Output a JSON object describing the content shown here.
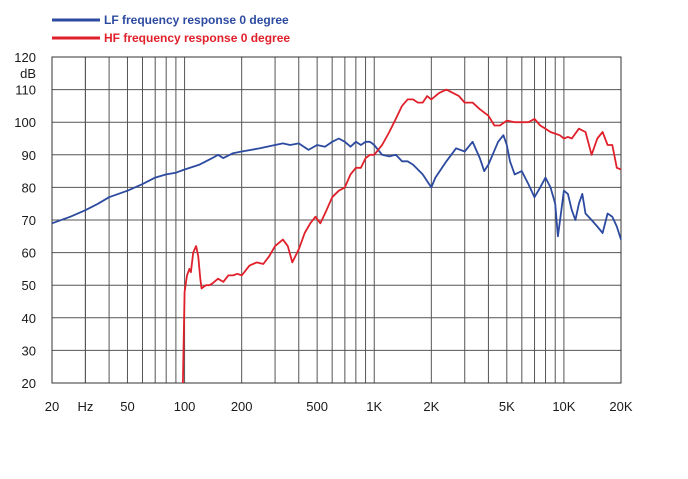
{
  "chart_data": {
    "type": "line",
    "title": "",
    "xlabel": "",
    "ylabel": "",
    "x_scale": "log",
    "xlim": [
      20,
      20000
    ],
    "ylim": [
      20,
      120
    ],
    "grid": true,
    "legend_placement": "top-left",
    "y_unit_label": "dB",
    "x_unit_label": "Hz",
    "y_ticks": [
      {
        "value": 120,
        "label": "120"
      },
      {
        "value": 110,
        "label": "110"
      },
      {
        "value": 100,
        "label": "100"
      },
      {
        "value": 90,
        "label": "90"
      },
      {
        "value": 80,
        "label": "80"
      },
      {
        "value": 70,
        "label": "70"
      },
      {
        "value": 60,
        "label": "60"
      },
      {
        "value": 50,
        "label": "50"
      },
      {
        "value": 40,
        "label": "40"
      },
      {
        "value": 30,
        "label": "30"
      },
      {
        "value": 20,
        "label": "20"
      }
    ],
    "x_ticks": [
      {
        "value": 20,
        "label": "20"
      },
      {
        "value": 50,
        "label": "50"
      },
      {
        "value": 100,
        "label": "100"
      },
      {
        "value": 200,
        "label": "200"
      },
      {
        "value": 500,
        "label": "500"
      },
      {
        "value": 1000,
        "label": "1K"
      },
      {
        "value": 2000,
        "label": "2K"
      },
      {
        "value": 5000,
        "label": "5K"
      },
      {
        "value": 10000,
        "label": "10K"
      },
      {
        "value": 20000,
        "label": "20K"
      }
    ],
    "series": [
      {
        "name": "LF frequency response 0 degree",
        "color": "#2c4aa0",
        "points": [
          [
            20,
            69
          ],
          [
            25,
            71
          ],
          [
            30,
            73
          ],
          [
            35,
            75
          ],
          [
            40,
            77
          ],
          [
            50,
            79
          ],
          [
            60,
            81
          ],
          [
            70,
            83
          ],
          [
            80,
            84
          ],
          [
            90,
            84.5
          ],
          [
            100,
            85.5
          ],
          [
            120,
            87
          ],
          [
            140,
            89
          ],
          [
            150,
            90
          ],
          [
            160,
            89
          ],
          [
            180,
            90.5
          ],
          [
            200,
            91
          ],
          [
            250,
            92
          ],
          [
            300,
            93
          ],
          [
            330,
            93.5
          ],
          [
            360,
            93
          ],
          [
            400,
            93.5
          ],
          [
            450,
            91.5
          ],
          [
            500,
            93
          ],
          [
            550,
            92.5
          ],
          [
            600,
            94
          ],
          [
            650,
            95
          ],
          [
            700,
            94
          ],
          [
            750,
            92.5
          ],
          [
            800,
            94
          ],
          [
            850,
            93
          ],
          [
            900,
            94
          ],
          [
            950,
            94
          ],
          [
            1000,
            93
          ],
          [
            1100,
            90
          ],
          [
            1200,
            89.5
          ],
          [
            1300,
            90
          ],
          [
            1400,
            88
          ],
          [
            1500,
            88
          ],
          [
            1600,
            87
          ],
          [
            1800,
            84
          ],
          [
            2000,
            80
          ],
          [
            2100,
            83
          ],
          [
            2400,
            88
          ],
          [
            2700,
            92
          ],
          [
            3000,
            91
          ],
          [
            3300,
            94
          ],
          [
            3600,
            89
          ],
          [
            3800,
            85
          ],
          [
            4000,
            87
          ],
          [
            4500,
            94
          ],
          [
            4800,
            96
          ],
          [
            5000,
            93
          ],
          [
            5200,
            88
          ],
          [
            5500,
            84
          ],
          [
            6000,
            85
          ],
          [
            6500,
            81
          ],
          [
            7000,
            77
          ],
          [
            7500,
            80
          ],
          [
            8000,
            83
          ],
          [
            8500,
            80
          ],
          [
            9000,
            75
          ],
          [
            9300,
            65
          ],
          [
            9600,
            71
          ],
          [
            10000,
            79
          ],
          [
            10500,
            78
          ],
          [
            11000,
            73
          ],
          [
            11500,
            70
          ],
          [
            12000,
            75
          ],
          [
            12500,
            78
          ],
          [
            13000,
            72
          ],
          [
            14000,
            70
          ],
          [
            15000,
            68
          ],
          [
            16000,
            66
          ],
          [
            17000,
            72
          ],
          [
            18000,
            71
          ],
          [
            19000,
            68
          ],
          [
            20000,
            64
          ]
        ]
      },
      {
        "name": "HF frequency response 0 degree",
        "color": "#e0202a",
        "points": [
          [
            98,
            20
          ],
          [
            100,
            48
          ],
          [
            103,
            53
          ],
          [
            106,
            55
          ],
          [
            108,
            54
          ],
          [
            111,
            60
          ],
          [
            115,
            62
          ],
          [
            118,
            59
          ],
          [
            121,
            52
          ],
          [
            123,
            49
          ],
          [
            126,
            49.5
          ],
          [
            130,
            50
          ],
          [
            135,
            50
          ],
          [
            140,
            50.5
          ],
          [
            150,
            52
          ],
          [
            160,
            51
          ],
          [
            170,
            53
          ],
          [
            180,
            53
          ],
          [
            190,
            53.5
          ],
          [
            200,
            53
          ],
          [
            220,
            56
          ],
          [
            240,
            57
          ],
          [
            260,
            56.5
          ],
          [
            280,
            59
          ],
          [
            300,
            62
          ],
          [
            330,
            64
          ],
          [
            350,
            62
          ],
          [
            370,
            57
          ],
          [
            400,
            61
          ],
          [
            430,
            66
          ],
          [
            460,
            69
          ],
          [
            490,
            71
          ],
          [
            520,
            69
          ],
          [
            560,
            73
          ],
          [
            600,
            77
          ],
          [
            650,
            79
          ],
          [
            700,
            80
          ],
          [
            750,
            84
          ],
          [
            800,
            86
          ],
          [
            850,
            86
          ],
          [
            900,
            89
          ],
          [
            950,
            90
          ],
          [
            1000,
            90
          ],
          [
            1100,
            93
          ],
          [
            1200,
            97
          ],
          [
            1300,
            101
          ],
          [
            1400,
            105
          ],
          [
            1500,
            107
          ],
          [
            1600,
            107
          ],
          [
            1700,
            106
          ],
          [
            1800,
            106
          ],
          [
            1900,
            108
          ],
          [
            2000,
            107
          ],
          [
            2100,
            108
          ],
          [
            2200,
            109
          ],
          [
            2400,
            110
          ],
          [
            2600,
            109
          ],
          [
            2800,
            108
          ],
          [
            3000,
            106
          ],
          [
            3300,
            106
          ],
          [
            3600,
            104
          ],
          [
            4000,
            102
          ],
          [
            4300,
            99
          ],
          [
            4600,
            99
          ],
          [
            5000,
            100.5
          ],
          [
            5500,
            100
          ],
          [
            6000,
            100
          ],
          [
            6500,
            100
          ],
          [
            7000,
            101
          ],
          [
            7500,
            99
          ],
          [
            8000,
            98
          ],
          [
            8500,
            97
          ],
          [
            9000,
            96.5
          ],
          [
            9500,
            96
          ],
          [
            10000,
            95
          ],
          [
            10500,
            95.5
          ],
          [
            11000,
            95
          ],
          [
            12000,
            98
          ],
          [
            13000,
            97
          ],
          [
            14000,
            90
          ],
          [
            15000,
            95
          ],
          [
            16000,
            97
          ],
          [
            17000,
            93
          ],
          [
            18000,
            93
          ],
          [
            19000,
            86
          ],
          [
            20000,
            85.5
          ]
        ]
      }
    ]
  }
}
